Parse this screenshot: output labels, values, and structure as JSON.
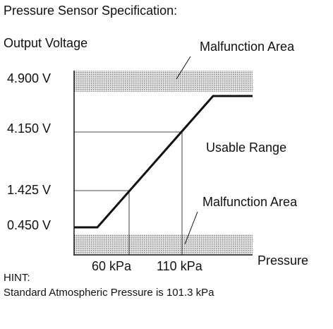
{
  "title": "Pressure Sensor Specification:",
  "y_axis_label": "Output Voltage",
  "x_axis_label": "Pressure",
  "y_labels": [
    "4.900 V",
    "4.150 V",
    "1.425 V",
    "0.450 V"
  ],
  "x_labels": [
    "60 kPa",
    "110 kPa"
  ],
  "annotations": {
    "upper_area": "Malfunction Area",
    "usable": "Usable Range",
    "lower_area": "Malfunction Area"
  },
  "hint": {
    "heading": "HINT:",
    "text": "Standard Atmospheric Pressure is 101.3 kPa"
  }
}
